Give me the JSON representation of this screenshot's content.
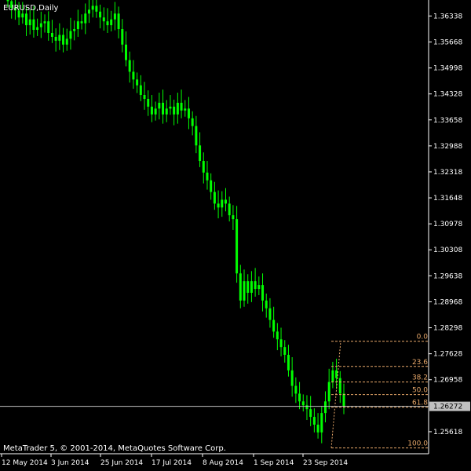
{
  "window": {
    "title": "EURUSD,Daily",
    "copyright": "MetaTrader 5, © 2001-2014, MetaQuotes Software Corp."
  },
  "colors": {
    "background": "#000000",
    "candle": "#00ff00",
    "axis_text": "#ffffff",
    "fib_line": "#e8a86a",
    "bid_line": "#c0c0c0"
  },
  "chart_data": {
    "type": "candlestick",
    "symbol": "EURUSD",
    "timeframe": "Daily",
    "ylim": [
      1.2505,
      1.3675
    ],
    "y_ticks": [
      "1.36338",
      "1.35668",
      "1.34998",
      "1.34328",
      "1.33658",
      "1.32988",
      "1.32318",
      "1.31648",
      "1.30978",
      "1.30308",
      "1.29638",
      "1.28968",
      "1.28298",
      "1.27628",
      "1.26958",
      "1.25618"
    ],
    "x_ticks": [
      "12 May 2014",
      "3 Jun 2014",
      "25 Jun 2014",
      "17 Jul 2014",
      "8 Aug 2014",
      "1 Sep 2014",
      "23 Sep 2014"
    ],
    "current_price": "1.26272",
    "fibonacci": {
      "high": 1.2795,
      "low": 1.252,
      "levels": [
        {
          "label": "0.0",
          "ratio": 0.0
        },
        {
          "label": "23.6",
          "ratio": 0.236
        },
        {
          "label": "38.2",
          "ratio": 0.382
        },
        {
          "label": "50.0",
          "ratio": 0.5
        },
        {
          "label": "61.8",
          "ratio": 0.618
        },
        {
          "label": "100.0",
          "ratio": 1.0
        }
      ]
    },
    "series": [
      {
        "values": [
          1.3672,
          1.3655,
          1.3648,
          1.363,
          1.364,
          1.361,
          1.3625,
          1.3598,
          1.3605,
          1.3615,
          1.362,
          1.359,
          1.358,
          1.357,
          1.3585,
          1.356,
          1.3575,
          1.3595,
          1.36,
          1.362,
          1.3615,
          1.364,
          1.365,
          1.366,
          1.3645,
          1.363,
          1.362,
          1.361,
          1.3625,
          1.364,
          1.36,
          1.356,
          1.352,
          1.349,
          1.347,
          1.3455,
          1.343,
          1.342,
          1.34,
          1.338,
          1.3395,
          1.341,
          1.338,
          1.3395,
          1.34,
          1.338,
          1.341,
          1.339,
          1.3395,
          1.337,
          1.335,
          1.33,
          1.326,
          1.323,
          1.321,
          1.318,
          1.315,
          1.314,
          1.316,
          1.315,
          1.312,
          1.311,
          1.297,
          1.29,
          1.295,
          1.292,
          1.295,
          1.293,
          1.294,
          1.29,
          1.288,
          1.285,
          1.282,
          1.28,
          1.278,
          1.276,
          1.272,
          1.268,
          1.266,
          1.264,
          1.263,
          1.262,
          1.26,
          1.258,
          1.256,
          1.261,
          1.264,
          1.269,
          1.272,
          1.27,
          1.266,
          1.2627
        ]
      }
    ]
  }
}
